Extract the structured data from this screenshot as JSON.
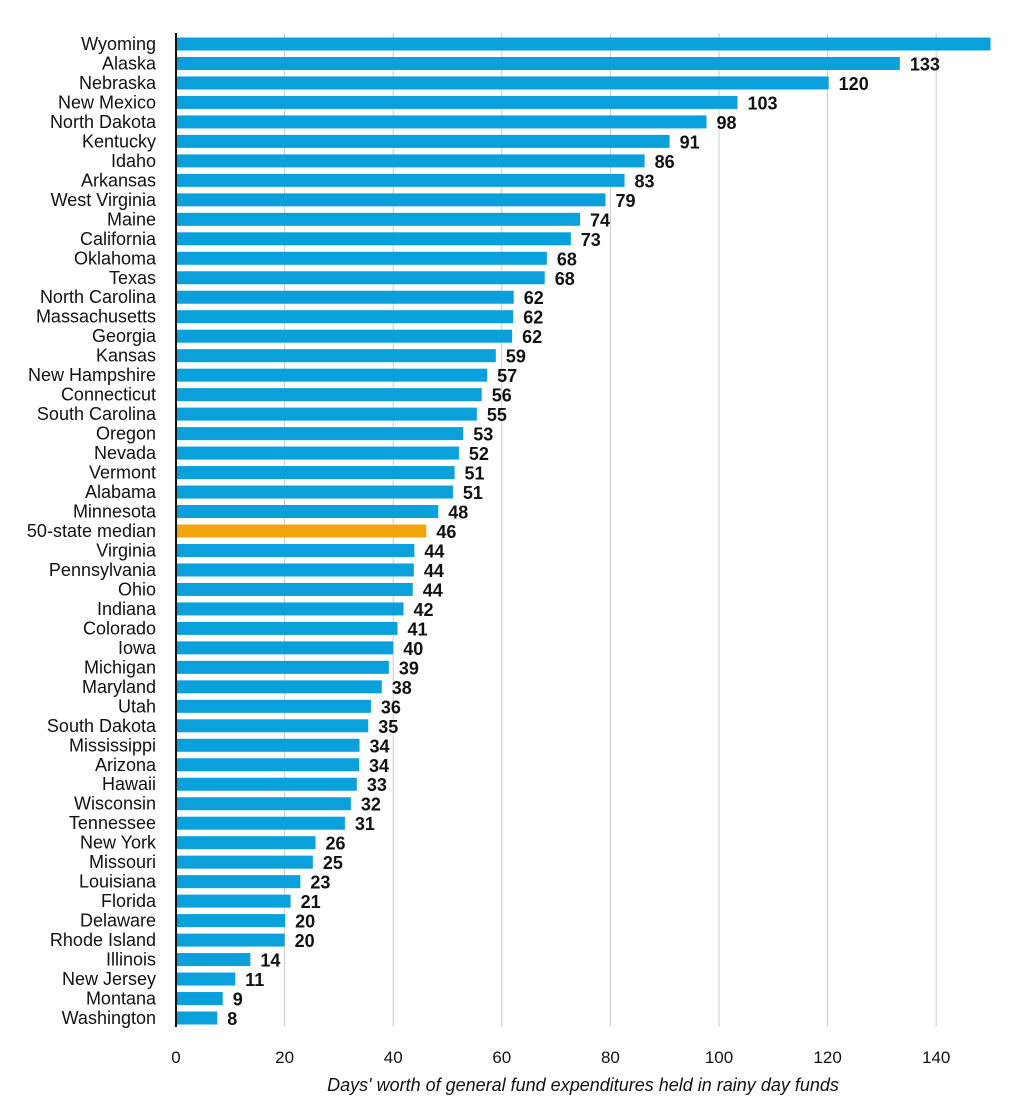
{
  "chart_data": {
    "type": "bar",
    "orientation": "horizontal",
    "title": "",
    "xlabel": "Days' worth of general fund expenditures held in rainy day funds",
    "ylabel": "",
    "xlim": [
      0,
      150
    ],
    "x_ticks": [
      0,
      20,
      40,
      60,
      80,
      100,
      120,
      140
    ],
    "grid": "vertical",
    "categories": [
      "Wyoming",
      "Alaska",
      "Nebraska",
      "New Mexico",
      "North Dakota",
      "Kentucky",
      "Idaho",
      "Arkansas",
      "West Virginia",
      "Maine",
      "California",
      "Oklahoma",
      "Texas",
      "North Carolina",
      "Massachusetts",
      "Georgia",
      "Kansas",
      "New Hampshire",
      "Connecticut",
      "South Carolina",
      "Oregon",
      "Nevada",
      "Vermont",
      "Alabama",
      "Minnesota",
      "50-state median",
      "Virginia",
      "Pennsylvania",
      "Ohio",
      "Indiana",
      "Colorado",
      "Iowa",
      "Michigan",
      "Maryland",
      "Utah",
      "South Dakota",
      "Mississippi",
      "Arizona",
      "Hawaii",
      "Wisconsin",
      "Tennessee",
      "New York",
      "Missouri",
      "Louisiana",
      "Florida",
      "Delaware",
      "Rhode Island",
      "Illinois",
      "New Jersey",
      "Montana",
      "Washington"
    ],
    "values": [
      150.5,
      133.3,
      120.2,
      103.4,
      97.7,
      90.9,
      86.3,
      82.6,
      79.1,
      74.4,
      72.7,
      68.3,
      67.9,
      62.2,
      62.1,
      61.9,
      58.9,
      57.3,
      56.3,
      55.4,
      52.9,
      52.1,
      51.3,
      51.0,
      48.3,
      46.1,
      43.9,
      43.8,
      43.6,
      41.9,
      40.8,
      40.0,
      39.2,
      37.9,
      35.9,
      35.4,
      33.8,
      33.7,
      33.3,
      32.2,
      31.1,
      25.7,
      25.2,
      22.9,
      21.1,
      20.1,
      20.0,
      13.7,
      10.9,
      8.6,
      7.6
    ],
    "value_labels": [
      "",
      "133",
      "120",
      "103",
      "98",
      "91",
      "86",
      "83",
      "79",
      "74",
      "73",
      "68",
      "68",
      "62",
      "62",
      "62",
      "59",
      "57",
      "56",
      "55",
      "53",
      "52",
      "51",
      "51",
      "48",
      "46",
      "44",
      "44",
      "44",
      "42",
      "41",
      "40",
      "39",
      "38",
      "36",
      "35",
      "34",
      "34",
      "33",
      "32",
      "31",
      "26",
      "25",
      "23",
      "21",
      "20",
      "20",
      "14",
      "11",
      "9",
      "8"
    ],
    "highlight_category": "50-state median",
    "colors": {
      "bar": "#0aa0dc",
      "highlight": "#f3a50c",
      "grid": "#cccccc",
      "axis": "#111111",
      "text": "#111111"
    }
  }
}
